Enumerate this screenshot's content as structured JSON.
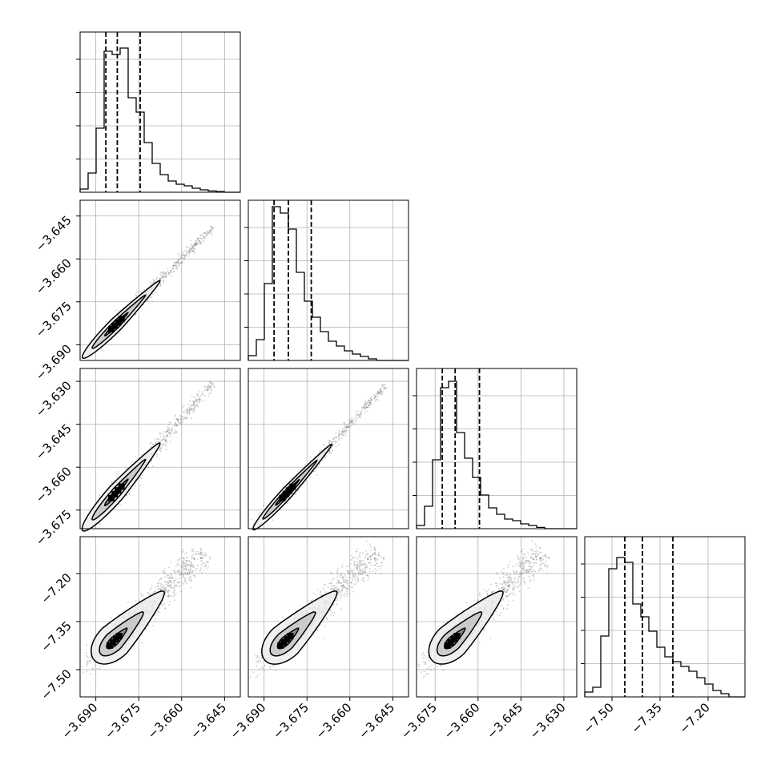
{
  "chart_data": {
    "type": "corner",
    "title": "",
    "parameter_labels": [
      "",
      "",
      "",
      ""
    ],
    "ticks": {
      "p0": [
        "−3.690",
        "−3.675",
        "−3.660",
        "−3.645"
      ],
      "p1": [
        "−3.690",
        "−3.675",
        "−3.660",
        "−3.645"
      ],
      "p2": [
        "−3.675",
        "−3.660",
        "−3.645",
        "−3.630"
      ],
      "p3": [
        "−7.50",
        "−7.35",
        "−7.20"
      ]
    },
    "tick_values": {
      "p0": [
        -3.69,
        -3.675,
        -3.66,
        -3.645
      ],
      "p1": [
        -3.69,
        -3.675,
        -3.66,
        -3.645
      ],
      "p2": [
        -3.675,
        -3.66,
        -3.645,
        -3.63
      ],
      "p3": [
        -7.5,
        -7.35,
        -7.2
      ]
    },
    "axis_ranges": {
      "p0": [
        -3.6955,
        -3.6395
      ],
      "p1": [
        -3.6955,
        -3.6395
      ],
      "p2": [
        -3.6815,
        -3.6255
      ],
      "p3": [
        -7.585,
        -7.085
      ]
    },
    "quantiles": {
      "p0": [
        -3.6865,
        -3.6825,
        -3.6745
      ],
      "p1": [
        -3.6865,
        -3.6815,
        -3.6735
      ],
      "p2": [
        -3.6725,
        -3.668,
        -3.6595
      ],
      "p3": [
        -7.46,
        -7.405,
        -7.31
      ]
    },
    "histograms": {
      "p0": {
        "bin_start": -3.6955,
        "bin_width": 0.0028,
        "counts": [
          0.02,
          0.12,
          0.4,
          0.88,
          0.86,
          0.9,
          0.59,
          0.5,
          0.31,
          0.18,
          0.11,
          0.07,
          0.05,
          0.04,
          0.025,
          0.015,
          0.008,
          0.004,
          0,
          0
        ]
      },
      "p1": {
        "bin_start": -3.6955,
        "bin_width": 0.0028,
        "counts": [
          0.03,
          0.13,
          0.48,
          0.96,
          0.92,
          0.82,
          0.55,
          0.37,
          0.27,
          0.18,
          0.12,
          0.09,
          0.06,
          0.04,
          0.025,
          0.01,
          0,
          0,
          0,
          0
        ]
      },
      "p2": {
        "bin_start": -3.6815,
        "bin_width": 0.0028,
        "counts": [
          0.02,
          0.14,
          0.43,
          0.88,
          0.92,
          0.6,
          0.44,
          0.32,
          0.21,
          0.13,
          0.09,
          0.06,
          0.05,
          0.03,
          0.02,
          0.008,
          0,
          0,
          0,
          0
        ]
      },
      "p3": {
        "bin_start": -7.585,
        "bin_width": 0.025,
        "counts": [
          0.03,
          0.06,
          0.38,
          0.8,
          0.87,
          0.84,
          0.58,
          0.5,
          0.41,
          0.31,
          0.25,
          0.22,
          0.19,
          0.16,
          0.12,
          0.08,
          0.04,
          0.02,
          0,
          0
        ]
      }
    },
    "pairs": [
      {
        "x": "p0",
        "y": "p1",
        "mode": "thin",
        "core": [
          -3.6828,
          -3.6828
        ],
        "end": [
          -3.649,
          -3.649
        ],
        "halfwidth_frac": 0.035
      },
      {
        "x": "p0",
        "y": "p2",
        "mode": "thin",
        "core": [
          -3.6828,
          -3.6688
        ],
        "end": [
          -3.649,
          -3.6305
        ],
        "halfwidth_frac": 0.045
      },
      {
        "x": "p1",
        "y": "p2",
        "mode": "thin",
        "core": [
          -3.6818,
          -3.6688
        ],
        "end": [
          -3.6475,
          -3.6315
        ],
        "halfwidth_frac": 0.03
      },
      {
        "x": "p0",
        "y": "p3",
        "mode": "broad",
        "core": [
          -3.6835,
          -7.41
        ],
        "end": [
          -3.652,
          -7.13
        ],
        "halfwidth_frac": 0.07
      },
      {
        "x": "p1",
        "y": "p3",
        "mode": "broad",
        "core": [
          -3.6825,
          -7.41
        ],
        "end": [
          -3.65,
          -7.13
        ],
        "halfwidth_frac": 0.07
      },
      {
        "x": "p2",
        "y": "p3",
        "mode": "broad",
        "core": [
          -3.669,
          -7.41
        ],
        "end": [
          -3.637,
          -7.13
        ],
        "halfwidth_frac": 0.07
      }
    ],
    "grid": true,
    "legend": "none"
  }
}
